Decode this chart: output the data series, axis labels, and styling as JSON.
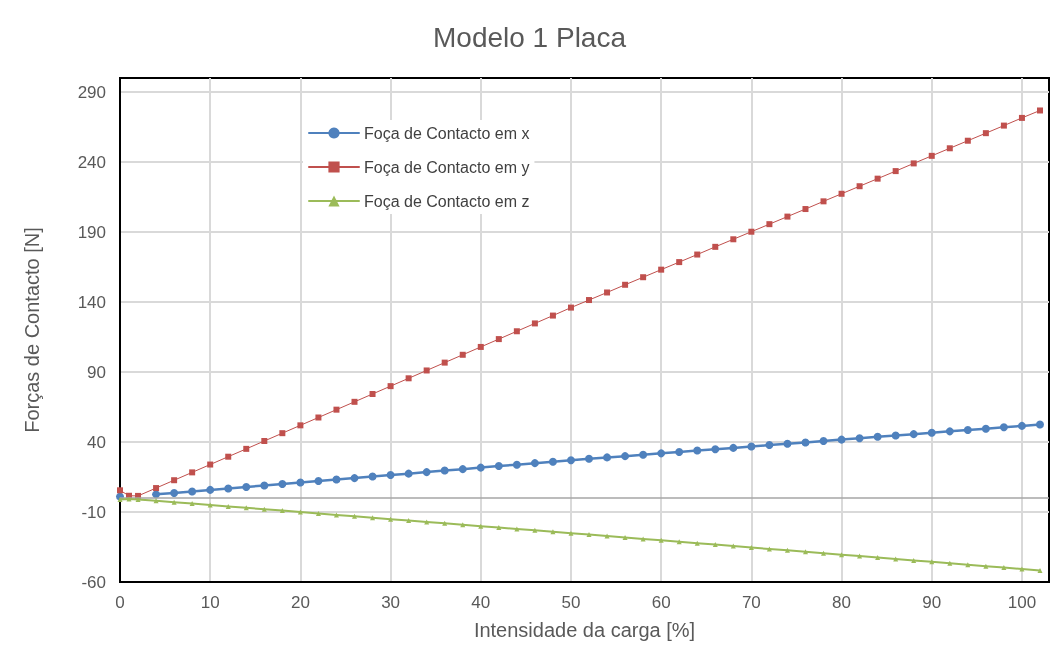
{
  "chart_data": {
    "type": "line",
    "title": "Modelo 1 Placa",
    "xlabel": "Intensidade da carga [%]",
    "ylabel": "Forças de Contacto [N]",
    "x": [
      0,
      1,
      2,
      4,
      6,
      8,
      10,
      12,
      14,
      16,
      18,
      20,
      22,
      24,
      26,
      28,
      30,
      32,
      34,
      36,
      38,
      40,
      42,
      44,
      46,
      48,
      50,
      52,
      54,
      56,
      58,
      60,
      62,
      64,
      66,
      68,
      70,
      72,
      74,
      76,
      78,
      80,
      82,
      84,
      86,
      88,
      90,
      92,
      94,
      96,
      98,
      100,
      102
    ],
    "series": [
      {
        "name": "Foça de Contacto em x",
        "color": "#4f81bd",
        "marker": "circle",
        "values": [
          1,
          null,
          null,
          2.6,
          3.6,
          4.7,
          5.8,
          6.8,
          7.9,
          8.9,
          10,
          11.1,
          12.1,
          13.2,
          14.2,
          15.3,
          16.4,
          17.4,
          18.5,
          19.6,
          20.6,
          21.7,
          22.8,
          23.8,
          24.9,
          25.9,
          27,
          28,
          29,
          29.9,
          30.9,
          31.9,
          32.9,
          33.9,
          34.8,
          35.8,
          36.8,
          37.8,
          38.8,
          39.7,
          40.7,
          41.7,
          42.7,
          43.7,
          44.6,
          45.6,
          46.6,
          47.6,
          48.6,
          49.5,
          50.5,
          51.5,
          52.5
        ]
      },
      {
        "name": "Foça de Contacto em y",
        "color": "#c0504d",
        "marker": "square",
        "values": [
          5.5,
          1.6,
          1.5,
          7.1,
          12.7,
          18.3,
          23.9,
          29.5,
          35.1,
          40.7,
          46.3,
          51.9,
          57.5,
          63.1,
          68.7,
          74.3,
          79.9,
          85.5,
          91.1,
          96.7,
          102.3,
          107.9,
          113.5,
          119.1,
          124.7,
          130.3,
          136,
          141.4,
          146.8,
          152.3,
          157.7,
          163.1,
          168.5,
          173.9,
          179.4,
          184.8,
          190.2,
          195.6,
          201,
          206.4,
          211.9,
          217.3,
          222.7,
          228.1,
          233.5,
          239,
          244.4,
          249.8,
          255.2,
          260.6,
          266,
          271.5,
          276.8
        ]
      },
      {
        "name": "Foça de Contacto em z",
        "color": "#9bbb59",
        "marker": "triangle",
        "values": [
          -1,
          -0.7,
          -1,
          -2,
          -3,
          -4,
          -5,
          -6,
          -7,
          -8,
          -9,
          -10,
          -11.1,
          -12.1,
          -13.1,
          -14.1,
          -15.1,
          -16.1,
          -17.1,
          -18.1,
          -19.1,
          -20.1,
          -21.1,
          -22.1,
          -23.1,
          -24.1,
          -25.1,
          -26.1,
          -27.2,
          -28.2,
          -29.2,
          -30.2,
          -31.3,
          -32.3,
          -33.3,
          -34.3,
          -35.4,
          -36.4,
          -37.4,
          -38.4,
          -39.5,
          -40.5,
          -41.5,
          -42.5,
          -43.6,
          -44.6,
          -45.6,
          -46.6,
          -47.7,
          -48.7,
          -49.7,
          -50.7,
          -51.8
        ]
      }
    ],
    "xlim": [
      0,
      103
    ],
    "xticks": [
      0,
      10,
      20,
      30,
      40,
      50,
      60,
      70,
      80,
      90,
      100
    ],
    "ylim": [
      -60,
      300
    ],
    "yticks": [
      -60,
      -10,
      40,
      90,
      140,
      190,
      240,
      290
    ],
    "ref_lines": [
      {
        "axis": "y",
        "value": 0,
        "color": "#a6a6a6"
      }
    ],
    "grid": true,
    "legend": "top left"
  }
}
